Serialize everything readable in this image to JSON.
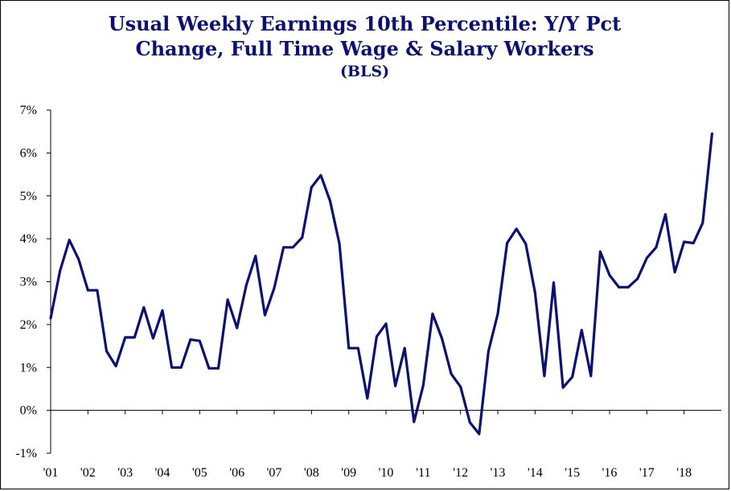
{
  "chart_data": {
    "type": "line",
    "title_lines": [
      "Usual Weekly Earnings 10th Percentile: Y/Y Pct",
      "Change, Full Time Wage & Salary Workers"
    ],
    "subtitle": "(BLS)",
    "xlabel": "",
    "ylabel": "",
    "ylim": [
      -1,
      7
    ],
    "xlim": [
      2001,
      2019
    ],
    "y_ticks": [
      {
        "value": 7,
        "label": "7%"
      },
      {
        "value": 6,
        "label": "6%"
      },
      {
        "value": 5,
        "label": "5%"
      },
      {
        "value": 4,
        "label": "4%"
      },
      {
        "value": 3,
        "label": "3%"
      },
      {
        "value": 2,
        "label": "2%"
      },
      {
        "value": 1,
        "label": "1%"
      },
      {
        "value": 0,
        "label": "0%"
      },
      {
        "value": -1,
        "label": "-1%"
      }
    ],
    "x_ticks": [
      {
        "value": 2001,
        "label": "'01"
      },
      {
        "value": 2002,
        "label": "'02"
      },
      {
        "value": 2003,
        "label": "'03"
      },
      {
        "value": 2004,
        "label": "'04"
      },
      {
        "value": 2005,
        "label": "'05"
      },
      {
        "value": 2006,
        "label": "'06"
      },
      {
        "value": 2007,
        "label": "'07"
      },
      {
        "value": 2008,
        "label": "'08"
      },
      {
        "value": 2009,
        "label": "'09"
      },
      {
        "value": 2010,
        "label": "'10"
      },
      {
        "value": 2011,
        "label": "'11"
      },
      {
        "value": 2012,
        "label": "'12"
      },
      {
        "value": 2013,
        "label": "'13"
      },
      {
        "value": 2014,
        "label": "'14"
      },
      {
        "value": 2015,
        "label": "'15"
      },
      {
        "value": 2016,
        "label": "'16"
      },
      {
        "value": 2017,
        "label": "'17"
      },
      {
        "value": 2018,
        "label": "'18"
      }
    ],
    "grid": false,
    "legend": "none",
    "series": [
      {
        "color": "#0a1172",
        "x": [
          2001.0,
          2001.25,
          2001.5,
          2001.75,
          2002.0,
          2002.25,
          2002.5,
          2002.75,
          2003.0,
          2003.25,
          2003.5,
          2003.75,
          2004.0,
          2004.25,
          2004.5,
          2004.75,
          2005.0,
          2005.25,
          2005.5,
          2005.75,
          2006.0,
          2006.25,
          2006.5,
          2006.75,
          2007.0,
          2007.25,
          2007.5,
          2007.75,
          2008.0,
          2008.25,
          2008.5,
          2008.75,
          2009.0,
          2009.25,
          2009.5,
          2009.75,
          2010.0,
          2010.25,
          2010.5,
          2010.75,
          2011.0,
          2011.25,
          2011.5,
          2011.75,
          2012.0,
          2012.25,
          2012.5,
          2012.75,
          2013.0,
          2013.25,
          2013.5,
          2013.75,
          2014.0,
          2014.25,
          2014.5,
          2014.75,
          2015.0,
          2015.25,
          2015.5,
          2015.75,
          2016.0,
          2016.25,
          2016.5,
          2016.75,
          2017.0,
          2017.25,
          2017.5,
          2017.75,
          2018.0,
          2018.25,
          2018.5,
          2018.75
        ],
        "y": [
          2.15,
          3.25,
          3.97,
          3.52,
          2.8,
          2.8,
          1.38,
          1.03,
          1.7,
          1.7,
          2.4,
          1.68,
          2.33,
          1.0,
          1.0,
          1.65,
          1.62,
          0.98,
          0.98,
          2.58,
          1.92,
          2.92,
          3.6,
          2.22,
          2.85,
          3.8,
          3.8,
          4.03,
          5.2,
          5.48,
          4.88,
          3.88,
          1.45,
          1.45,
          0.28,
          1.72,
          2.02,
          0.57,
          1.45,
          -0.27,
          0.58,
          2.25,
          1.68,
          0.85,
          0.55,
          -0.28,
          -0.55,
          1.38,
          2.25,
          3.9,
          4.23,
          3.88,
          2.75,
          0.8,
          2.98,
          0.53,
          0.78,
          1.87,
          0.8,
          3.7,
          3.15,
          2.87,
          2.87,
          3.07,
          3.55,
          3.8,
          4.57,
          3.22,
          3.93,
          3.9,
          4.37,
          6.45
        ]
      }
    ]
  }
}
